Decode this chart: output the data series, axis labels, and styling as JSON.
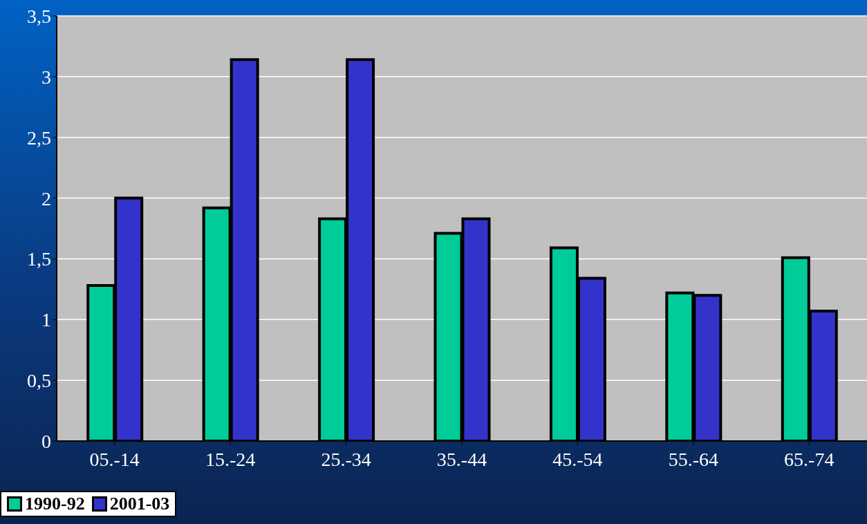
{
  "chart_data": {
    "type": "bar",
    "categories": [
      "05.-14",
      "15.-24",
      "25.-34",
      "35.-44",
      "45.-54",
      "55.-64",
      "65.-74"
    ],
    "series": [
      {
        "name": "1990-92",
        "color": "#00cc99",
        "values": [
          1.28,
          1.92,
          1.83,
          1.71,
          1.59,
          1.22,
          1.51
        ]
      },
      {
        "name": "2001-03",
        "color": "#3333cc",
        "values": [
          2.0,
          3.14,
          3.14,
          1.83,
          1.34,
          1.2,
          1.07
        ]
      }
    ],
    "ylim": [
      0,
      3.5
    ],
    "yticks": [
      0,
      {
        "value": 0.5,
        "label": "0,5"
      },
      1,
      {
        "value": 1.5,
        "label": "1,5"
      },
      2,
      {
        "value": 2.5,
        "label": "2,5"
      },
      3,
      {
        "value": 3.5,
        "label": "3,5"
      }
    ],
    "grid": "y",
    "legend": "bottom"
  }
}
